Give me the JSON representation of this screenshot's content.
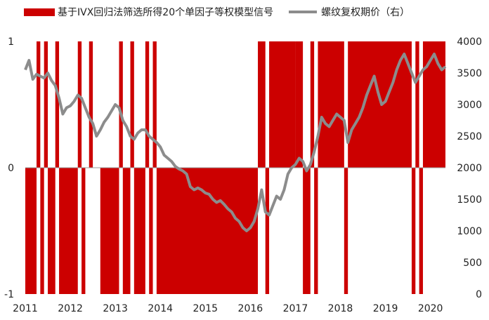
{
  "chart_data": {
    "type": "bar+line",
    "legend": [
      {
        "name": "基于IVX回归法筛选所得20个单因子等权模型信号",
        "color": "#cc0000",
        "kind": "bar"
      },
      {
        "name": "螺纹复权期价（右）",
        "color": "#8c8c8c",
        "kind": "line"
      }
    ],
    "left_axis": {
      "ylim": [
        -1,
        1
      ],
      "ticks": [
        "1",
        "0",
        "-1"
      ],
      "tick_values": [
        1,
        0,
        -1
      ]
    },
    "right_axis": {
      "ylim": [
        0,
        4000
      ],
      "ticks": [
        "4000",
        "3500",
        "3000",
        "2500",
        "2000",
        "1500",
        "1000",
        "500",
        "0"
      ],
      "tick_values": [
        4000,
        3500,
        3000,
        2500,
        2000,
        1500,
        1000,
        500,
        0
      ]
    },
    "x_axis": {
      "range": [
        "2011-01",
        "2020-05"
      ],
      "ticks": [
        "2011",
        "2012",
        "2013",
        "2014",
        "2015",
        "2016",
        "2017",
        "2018",
        "2019",
        "2020"
      ]
    },
    "signal_series": {
      "name": "基于IVX回归法筛选所得20个单因子等权模型信号",
      "segments": [
        {
          "start": "2011-01",
          "end": "2011-04",
          "value": -1
        },
        {
          "start": "2011-04",
          "end": "2011-05",
          "value": 1
        },
        {
          "start": "2011-05",
          "end": "2011-06",
          "value": -1
        },
        {
          "start": "2011-06",
          "end": "2011-07",
          "value": 1
        },
        {
          "start": "2011-07",
          "end": "2011-09",
          "value": -1
        },
        {
          "start": "2011-09",
          "end": "2011-10",
          "value": 1
        },
        {
          "start": "2011-10",
          "end": "2012-03",
          "value": -1
        },
        {
          "start": "2012-03",
          "end": "2012-04",
          "value": 1
        },
        {
          "start": "2012-04",
          "end": "2012-05",
          "value": -1
        },
        {
          "start": "2012-06",
          "end": "2012-07",
          "value": 1
        },
        {
          "start": "2012-09",
          "end": "2013-02",
          "value": -1
        },
        {
          "start": "2013-02",
          "end": "2013-03",
          "value": 1
        },
        {
          "start": "2013-03",
          "end": "2013-05",
          "value": -1
        },
        {
          "start": "2013-05",
          "end": "2013-06",
          "value": 1
        },
        {
          "start": "2013-06",
          "end": "2013-09",
          "value": -1
        },
        {
          "start": "2013-09",
          "end": "2013-10",
          "value": 1
        },
        {
          "start": "2013-10",
          "end": "2013-11",
          "value": -1
        },
        {
          "start": "2013-11",
          "end": "2013-12",
          "value": 1
        },
        {
          "start": "2013-12",
          "end": "2016-03",
          "value": -1
        },
        {
          "start": "2016-03",
          "end": "2016-05",
          "value": 1
        },
        {
          "start": "2016-05",
          "end": "2016-06",
          "value": -1
        },
        {
          "start": "2016-06",
          "end": "2017-01",
          "value": 1
        },
        {
          "start": "2017-01",
          "end": "2017-03",
          "value": 1
        },
        {
          "start": "2017-03",
          "end": "2017-05",
          "value": -1
        },
        {
          "start": "2017-05",
          "end": "2017-06",
          "value": 1
        },
        {
          "start": "2017-06",
          "end": "2017-07",
          "value": -1
        },
        {
          "start": "2017-07",
          "end": "2018-02",
          "value": 1
        },
        {
          "start": "2018-02",
          "end": "2018-03",
          "value": -1
        },
        {
          "start": "2018-03",
          "end": "2019-08",
          "value": 1
        },
        {
          "start": "2019-08",
          "end": "2019-09",
          "value": -1
        },
        {
          "start": "2019-09",
          "end": "2019-10",
          "value": 1
        },
        {
          "start": "2019-10",
          "end": "2019-11",
          "value": -1
        },
        {
          "start": "2019-11",
          "end": "2020-05",
          "value": 1
        }
      ]
    },
    "price_series": {
      "name": "螺纹复权期价（右）",
      "points": [
        [
          "2011-01",
          3550
        ],
        [
          "2011-02",
          3700
        ],
        [
          "2011-03",
          3400
        ],
        [
          "2011-04",
          3480
        ],
        [
          "2011-05",
          3450
        ],
        [
          "2011-06",
          3420
        ],
        [
          "2011-07",
          3500
        ],
        [
          "2011-08",
          3380
        ],
        [
          "2011-09",
          3300
        ],
        [
          "2011-10",
          3100
        ],
        [
          "2011-11",
          2850
        ],
        [
          "2011-12",
          2950
        ],
        [
          "2012-01",
          2980
        ],
        [
          "2012-02",
          3050
        ],
        [
          "2012-03",
          3150
        ],
        [
          "2012-04",
          3100
        ],
        [
          "2012-05",
          2950
        ],
        [
          "2012-06",
          2800
        ],
        [
          "2012-07",
          2700
        ],
        [
          "2012-08",
          2500
        ],
        [
          "2012-09",
          2600
        ],
        [
          "2012-10",
          2720
        ],
        [
          "2012-11",
          2800
        ],
        [
          "2012-12",
          2900
        ],
        [
          "2013-01",
          3000
        ],
        [
          "2013-02",
          2950
        ],
        [
          "2013-03",
          2750
        ],
        [
          "2013-04",
          2650
        ],
        [
          "2013-05",
          2500
        ],
        [
          "2013-06",
          2450
        ],
        [
          "2013-07",
          2550
        ],
        [
          "2013-08",
          2600
        ],
        [
          "2013-09",
          2600
        ],
        [
          "2013-10",
          2500
        ],
        [
          "2013-11",
          2450
        ],
        [
          "2013-12",
          2400
        ],
        [
          "2014-01",
          2330
        ],
        [
          "2014-02",
          2200
        ],
        [
          "2014-03",
          2150
        ],
        [
          "2014-04",
          2100
        ],
        [
          "2014-05",
          2020
        ],
        [
          "2014-06",
          1980
        ],
        [
          "2014-07",
          1950
        ],
        [
          "2014-08",
          1900
        ],
        [
          "2014-09",
          1700
        ],
        [
          "2014-10",
          1650
        ],
        [
          "2014-11",
          1680
        ],
        [
          "2014-12",
          1650
        ],
        [
          "2015-01",
          1600
        ],
        [
          "2015-02",
          1580
        ],
        [
          "2015-03",
          1500
        ],
        [
          "2015-04",
          1450
        ],
        [
          "2015-05",
          1480
        ],
        [
          "2015-06",
          1420
        ],
        [
          "2015-07",
          1350
        ],
        [
          "2015-08",
          1300
        ],
        [
          "2015-09",
          1200
        ],
        [
          "2015-10",
          1150
        ],
        [
          "2015-11",
          1050
        ],
        [
          "2015-12",
          1000
        ],
        [
          "2016-01",
          1050
        ],
        [
          "2016-02",
          1150
        ],
        [
          "2016-03",
          1350
        ],
        [
          "2016-04",
          1650
        ],
        [
          "2016-05",
          1300
        ],
        [
          "2016-06",
          1250
        ],
        [
          "2016-07",
          1400
        ],
        [
          "2016-08",
          1550
        ],
        [
          "2016-09",
          1500
        ],
        [
          "2016-10",
          1650
        ],
        [
          "2016-11",
          1900
        ],
        [
          "2016-12",
          2000
        ],
        [
          "2017-01",
          2050
        ],
        [
          "2017-02",
          2150
        ],
        [
          "2017-03",
          2100
        ],
        [
          "2017-04",
          1950
        ],
        [
          "2017-05",
          2050
        ],
        [
          "2017-06",
          2250
        ],
        [
          "2017-07",
          2500
        ],
        [
          "2017-08",
          2800
        ],
        [
          "2017-09",
          2700
        ],
        [
          "2017-10",
          2650
        ],
        [
          "2017-11",
          2750
        ],
        [
          "2017-12",
          2850
        ],
        [
          "2018-01",
          2800
        ],
        [
          "2018-02",
          2750
        ],
        [
          "2018-03",
          2400
        ],
        [
          "2018-04",
          2600
        ],
        [
          "2018-05",
          2700
        ],
        [
          "2018-06",
          2800
        ],
        [
          "2018-07",
          2950
        ],
        [
          "2018-08",
          3150
        ],
        [
          "2018-09",
          3300
        ],
        [
          "2018-10",
          3450
        ],
        [
          "2018-11",
          3200
        ],
        [
          "2018-12",
          3000
        ],
        [
          "2019-01",
          3050
        ],
        [
          "2019-02",
          3200
        ],
        [
          "2019-03",
          3350
        ],
        [
          "2019-04",
          3550
        ],
        [
          "2019-05",
          3700
        ],
        [
          "2019-06",
          3800
        ],
        [
          "2019-07",
          3650
        ],
        [
          "2019-08",
          3500
        ],
        [
          "2019-09",
          3350
        ],
        [
          "2019-10",
          3450
        ],
        [
          "2019-11",
          3550
        ],
        [
          "2019-12",
          3600
        ],
        [
          "2020-01",
          3700
        ],
        [
          "2020-02",
          3800
        ],
        [
          "2020-03",
          3650
        ],
        [
          "2020-04",
          3550
        ],
        [
          "2020-05",
          3600
        ]
      ]
    }
  }
}
